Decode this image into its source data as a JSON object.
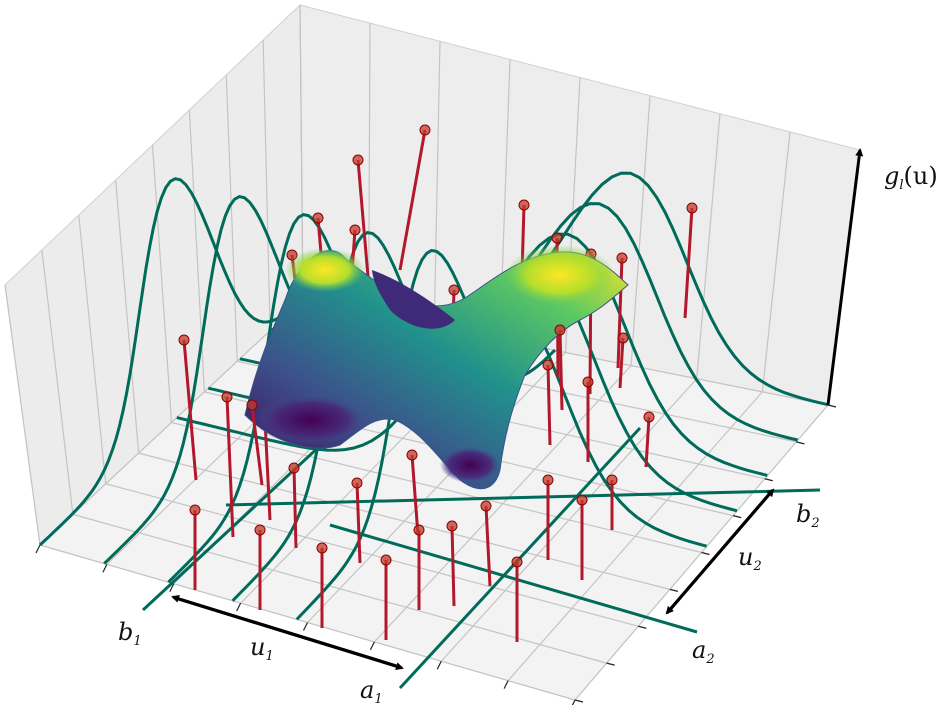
{
  "labels": {
    "gl_main": "g",
    "gl_sub": "l",
    "gl_arg": "(u)",
    "a1_main": "a",
    "a1_sub": "1",
    "b1_main": "b",
    "b1_sub": "1",
    "u1_main": "u",
    "u1_sub": "1",
    "a2_main": "a",
    "a2_sub": "2",
    "b2_main": "b",
    "b2_sub": "2",
    "u2_main": "u",
    "u2_sub": "2"
  },
  "colors": {
    "pane": "#f2f2f2",
    "grid": "#c8c8c8",
    "curve": "#006b5a",
    "stem": "#b2182b",
    "stem_head": "#c0392b",
    "arrow": "#000000",
    "surface_low": "#440154",
    "surface_mid": "#21918c",
    "surface_high": "#fde725"
  },
  "stem_count": 44,
  "wall_curve_count": 10
}
